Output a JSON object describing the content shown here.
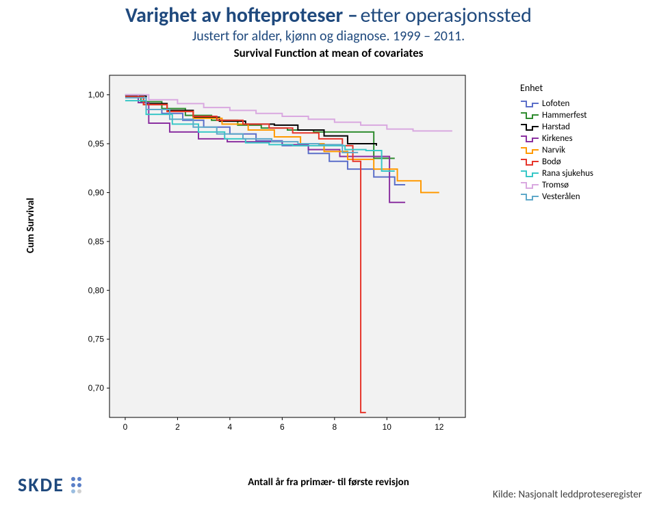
{
  "page": {
    "title_line1_a": "Varighet av hofteproteser –",
    "title_line1_b": "etter operasjonssted",
    "subtitle": "Justert for alder, kjønn og diagnose. 1999 – 2011.",
    "chart_title": "Survival Function at mean of covariates",
    "ylabel": "Cum Survival",
    "xlabel": "Antall år fra primær- til første revisjon",
    "legend_title": "Enhet",
    "source_label": "Kilde: Nasjonalt leddproteseregister",
    "logo_text": "SKDE"
  },
  "chart": {
    "type": "survival-step-line",
    "background_color": "#f6f6f6",
    "plot_bg": "#f2f2f2",
    "border_color": "#000000",
    "line_width": 2,
    "xlim": [
      -0.6,
      13
    ],
    "ylim": [
      0.67,
      1.02
    ],
    "xticks": [
      0,
      2,
      4,
      6,
      8,
      10,
      12
    ],
    "yticks": [
      0.7,
      0.75,
      0.8,
      0.85,
      0.9,
      0.95,
      1.0
    ],
    "ytick_labels": [
      "0,70",
      "0,75",
      "0,80",
      "0,85",
      "0,90",
      "0,95",
      "1,00"
    ],
    "tick_fontsize": 12,
    "series": [
      {
        "name": "Lofoten",
        "color": "#5b6ec9",
        "points": [
          [
            0,
            1.0
          ],
          [
            0.7,
            0.99
          ],
          [
            1.4,
            0.981
          ],
          [
            2.2,
            0.974
          ],
          [
            3.0,
            0.967
          ],
          [
            4.0,
            0.96
          ],
          [
            5.0,
            0.953
          ],
          [
            6.0,
            0.948
          ],
          [
            7.0,
            0.94
          ],
          [
            7.8,
            0.932
          ],
          [
            8.5,
            0.924
          ],
          [
            9.5,
            0.916
          ],
          [
            10.3,
            0.908
          ],
          [
            10.7,
            0.908
          ]
        ]
      },
      {
        "name": "Hammerfest",
        "color": "#2e8b2e",
        "points": [
          [
            0,
            1.0
          ],
          [
            0.6,
            0.993
          ],
          [
            1.4,
            0.986
          ],
          [
            2.3,
            0.979
          ],
          [
            3.3,
            0.974
          ],
          [
            4.3,
            0.969
          ],
          [
            5.2,
            0.966
          ],
          [
            6.2,
            0.964
          ],
          [
            7.2,
            0.962
          ],
          [
            8.3,
            0.962
          ],
          [
            9.5,
            0.935
          ],
          [
            10.3,
            0.935
          ]
        ]
      },
      {
        "name": "Harstad",
        "color": "#000000",
        "points": [
          [
            0,
            0.999
          ],
          [
            0.8,
            0.991
          ],
          [
            1.6,
            0.984
          ],
          [
            2.6,
            0.977
          ],
          [
            3.6,
            0.973
          ],
          [
            4.6,
            0.97
          ],
          [
            5.7,
            0.969
          ],
          [
            6.6,
            0.964
          ],
          [
            7.6,
            0.958
          ],
          [
            8.5,
            0.95
          ],
          [
            9.6,
            0.948
          ]
        ]
      },
      {
        "name": "Kirkenes",
        "color": "#8a2fa0",
        "points": [
          [
            0,
            1.0
          ],
          [
            0.5,
            0.992
          ],
          [
            0.9,
            0.971
          ],
          [
            1.7,
            0.962
          ],
          [
            2.8,
            0.955
          ],
          [
            3.9,
            0.952
          ],
          [
            5.0,
            0.952
          ],
          [
            6.0,
            0.949
          ],
          [
            7.0,
            0.944
          ],
          [
            8.2,
            0.937
          ],
          [
            8.9,
            0.937
          ],
          [
            9.7,
            0.937
          ],
          [
            10.1,
            0.89
          ],
          [
            10.7,
            0.89
          ]
        ]
      },
      {
        "name": "Narvik",
        "color": "#ff9900",
        "points": [
          [
            0,
            0.998
          ],
          [
            0.7,
            0.99
          ],
          [
            1.6,
            0.983
          ],
          [
            2.6,
            0.976
          ],
          [
            3.7,
            0.97
          ],
          [
            4.7,
            0.964
          ],
          [
            5.7,
            0.957
          ],
          [
            6.7,
            0.95
          ],
          [
            7.6,
            0.942
          ],
          [
            8.5,
            0.934
          ],
          [
            9.5,
            0.924
          ],
          [
            10.4,
            0.912
          ],
          [
            11.3,
            0.9
          ],
          [
            12.0,
            0.9
          ]
        ]
      },
      {
        "name": "Bodø",
        "color": "#e6352b",
        "points": [
          [
            0,
            0.998
          ],
          [
            0.7,
            0.99
          ],
          [
            1.6,
            0.983
          ],
          [
            2.6,
            0.978
          ],
          [
            3.5,
            0.974
          ],
          [
            4.5,
            0.97
          ],
          [
            5.5,
            0.966
          ],
          [
            6.4,
            0.961
          ],
          [
            7.4,
            0.955
          ],
          [
            8.3,
            0.948
          ],
          [
            8.7,
            0.932
          ],
          [
            9.0,
            0.675
          ],
          [
            9.2,
            0.675
          ]
        ]
      },
      {
        "name": "Rana sjukehus",
        "color": "#38c7c7",
        "points": [
          [
            0,
            0.994
          ],
          [
            0.8,
            0.98
          ],
          [
            1.8,
            0.97
          ],
          [
            2.8,
            0.962
          ],
          [
            3.8,
            0.955
          ],
          [
            4.6,
            0.951
          ],
          [
            5.5,
            0.949
          ],
          [
            6.4,
            0.948
          ],
          [
            7.3,
            0.948
          ],
          [
            8.4,
            0.944
          ],
          [
            9.2,
            0.943
          ],
          [
            9.8,
            0.922
          ],
          [
            10.3,
            0.922
          ]
        ]
      },
      {
        "name": "Tromsø",
        "color": "#d9a8e0",
        "points": [
          [
            0,
            1.0
          ],
          [
            0.9,
            0.995
          ],
          [
            2.0,
            0.991
          ],
          [
            3.0,
            0.987
          ],
          [
            4.0,
            0.984
          ],
          [
            5.0,
            0.981
          ],
          [
            6.0,
            0.978
          ],
          [
            7.0,
            0.975
          ],
          [
            8.0,
            0.972
          ],
          [
            9.0,
            0.969
          ],
          [
            10.0,
            0.965
          ],
          [
            11.0,
            0.963
          ],
          [
            12.0,
            0.963
          ],
          [
            12.5,
            0.963
          ]
        ]
      },
      {
        "name": "Vesterålen",
        "color": "#5ea8c9",
        "points": [
          [
            0,
            0.997
          ],
          [
            0.8,
            0.985
          ],
          [
            1.7,
            0.975
          ],
          [
            2.6,
            0.967
          ],
          [
            3.5,
            0.96
          ],
          [
            4.5,
            0.955
          ],
          [
            5.6,
            0.952
          ],
          [
            6.6,
            0.95
          ],
          [
            7.4,
            0.949
          ],
          [
            8.3,
            0.941
          ],
          [
            8.9,
            0.941
          ]
        ]
      }
    ]
  },
  "logo_dots": [
    "#5a7fc7",
    "#5a7fc7",
    "#5a7fc7",
    "#5a7fc7",
    "#9abde0",
    "#d0d0d0"
  ]
}
